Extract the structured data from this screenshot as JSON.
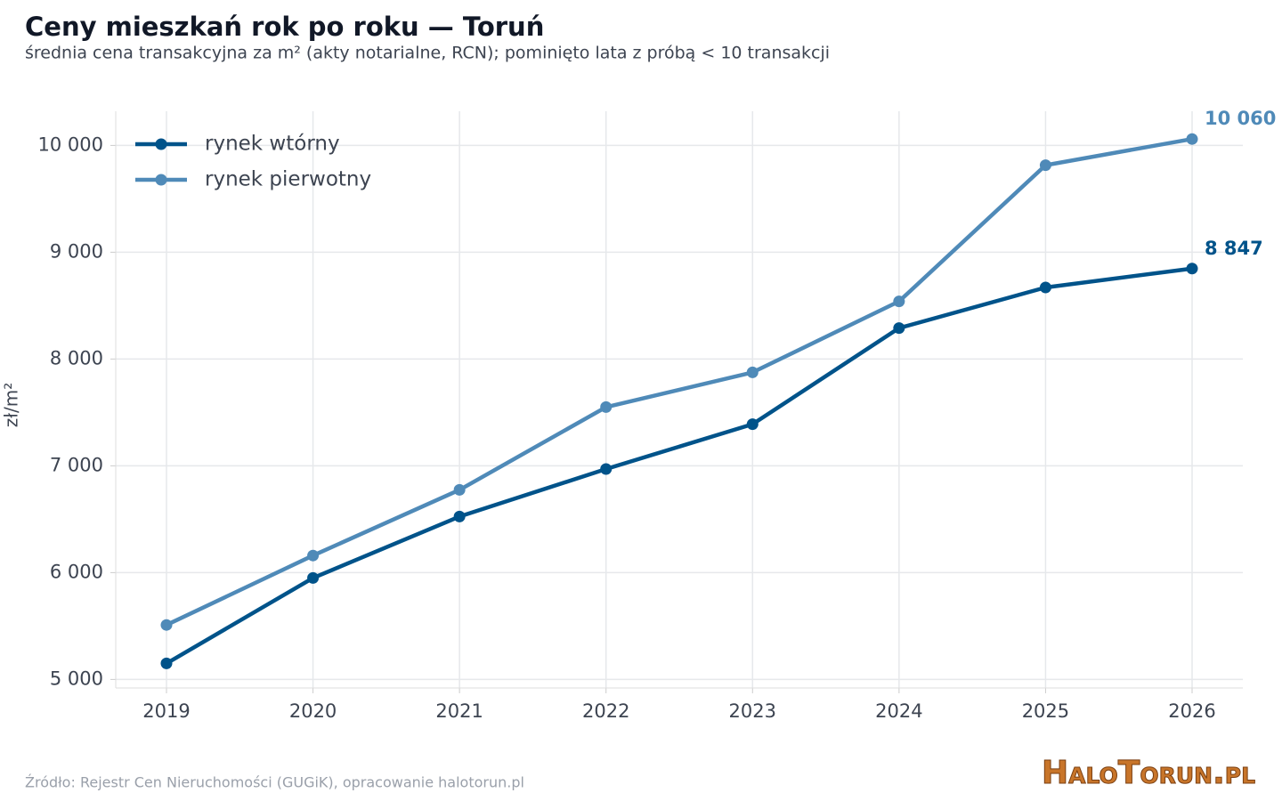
{
  "chart_data": {
    "type": "line",
    "title": "Ceny mieszkań rok po roku — Toruń",
    "subtitle": "średnia cena transakcyjna za m² (akty notarialne, RCN); pominięto lata z próbą < 10 transakcji",
    "y_label": "zł/m²",
    "source": "Źródło: Rejestr Cen Nieruchomości (GUGiK), opracowanie halotorun.pl",
    "logo": "HaloTorun.pl",
    "categories": [
      "2019",
      "2020",
      "2021",
      "2022",
      "2023",
      "2024",
      "2025",
      "2026"
    ],
    "series": [
      {
        "name": "rynek wtórny",
        "color": "#00538a",
        "values": [
          5150,
          5950,
          6525,
          6970,
          7390,
          8290,
          8670,
          8847
        ],
        "value_labels": [
          null,
          null,
          null,
          null,
          null,
          null,
          null,
          "8 847"
        ]
      },
      {
        "name": "rynek pierwotny",
        "color": "#4f8ab8",
        "values": [
          5510,
          6160,
          6775,
          7550,
          7875,
          8540,
          9815,
          10060
        ],
        "value_labels": [
          null,
          null,
          null,
          null,
          null,
          null,
          null,
          "10 060"
        ]
      }
    ],
    "ylim": [
      4920,
      10320
    ],
    "yticks": [
      {
        "value": 5000,
        "label": "5 000"
      },
      {
        "value": 6000,
        "label": "6 000"
      },
      {
        "value": 7000,
        "label": "7 000"
      },
      {
        "value": 8000,
        "label": "8 000"
      },
      {
        "value": 9000,
        "label": "9 000"
      },
      {
        "value": 10000,
        "label": "10 000"
      }
    ],
    "grid": true,
    "legend": "upper-left"
  }
}
